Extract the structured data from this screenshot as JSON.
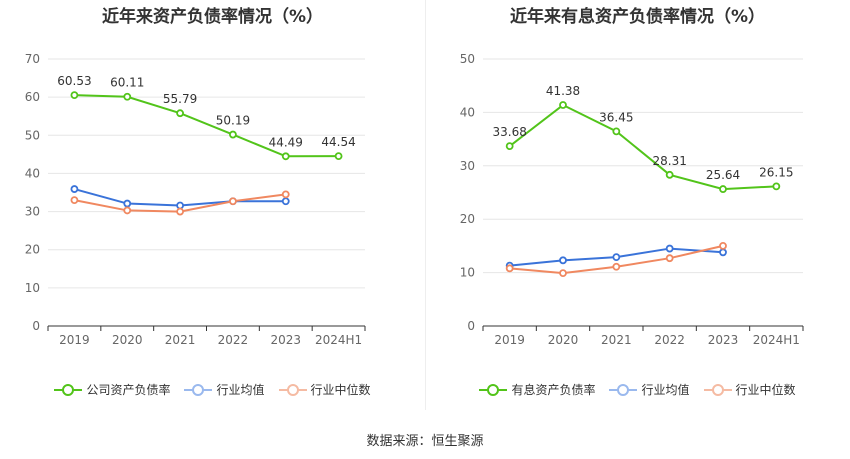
{
  "colors": {
    "primary": "#52c41a",
    "industry_avg": "#3a73d9",
    "industry_median": "#f08860",
    "grid": "#e6e6e6",
    "axis": "#666666"
  },
  "source": "数据来源：恒生聚源",
  "chart_data": [
    {
      "type": "line",
      "title": "近年来资产负债率情况（%）",
      "categories": [
        "2019",
        "2020",
        "2021",
        "2022",
        "2023",
        "2024H1"
      ],
      "ylim": [
        0,
        70
      ],
      "yticks": [
        "0",
        "10",
        "20",
        "30",
        "40",
        "50",
        "60",
        "70"
      ],
      "grid": true,
      "legend_position": "bottom",
      "series": [
        {
          "name": "公司资产负债率",
          "values": [
            60.53,
            60.11,
            55.79,
            50.19,
            44.49,
            44.54
          ],
          "labels": [
            "60.53",
            "60.11",
            "55.79",
            "50.19",
            "44.49",
            "44.54"
          ]
        },
        {
          "name": "行业均值",
          "values": [
            35.9,
            32.1,
            31.6,
            32.7,
            32.7,
            null
          ]
        },
        {
          "name": "行业中位数",
          "values": [
            33.0,
            30.3,
            30.0,
            32.7,
            34.5,
            null
          ]
        }
      ]
    },
    {
      "type": "line",
      "title": "近年来有息资产负债率情况（%）",
      "categories": [
        "2019",
        "2020",
        "2021",
        "2022",
        "2023",
        "2024H1"
      ],
      "ylim": [
        0,
        50
      ],
      "yticks": [
        "0",
        "10",
        "20",
        "30",
        "40",
        "50"
      ],
      "grid": true,
      "legend_position": "bottom",
      "series": [
        {
          "name": "有息资产负债率",
          "values": [
            33.68,
            41.38,
            36.45,
            28.31,
            25.64,
            26.15
          ],
          "labels": [
            "33.68",
            "41.38",
            "36.45",
            "28.31",
            "25.64",
            "26.15"
          ]
        },
        {
          "name": "行业均值",
          "values": [
            11.3,
            12.3,
            12.9,
            14.5,
            13.8,
            null
          ]
        },
        {
          "name": "行业中位数",
          "values": [
            10.8,
            9.9,
            11.1,
            12.7,
            15.0,
            null
          ]
        }
      ]
    }
  ]
}
